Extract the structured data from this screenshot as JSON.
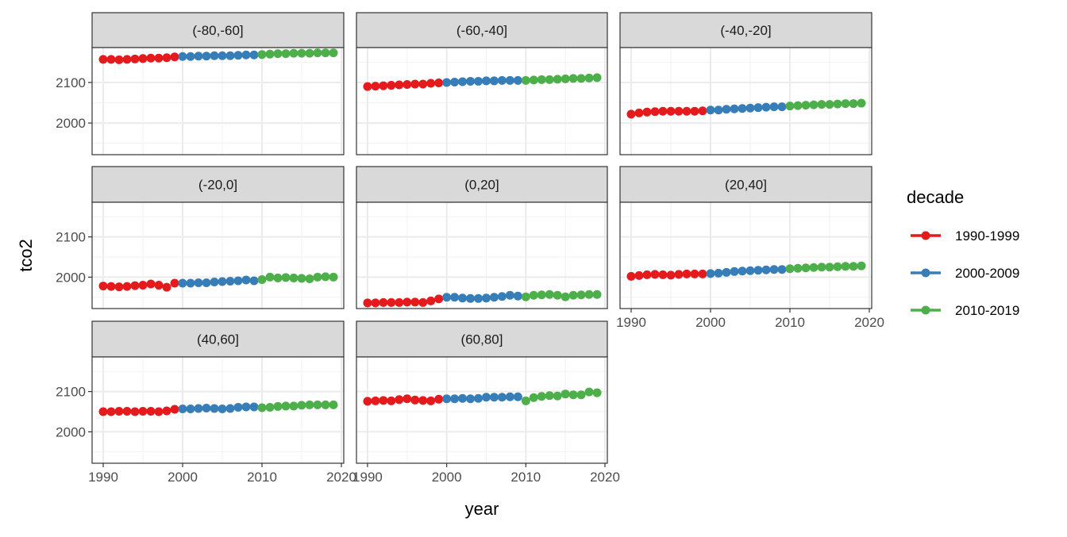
{
  "chart_data": {
    "type": "scatter",
    "facet_by": "latitude band",
    "xlabel": "year",
    "ylabel": "tco2",
    "xlim": [
      1988.6,
      2020.3
    ],
    "ylim": [
      1922,
      2186
    ],
    "x_ticks": [
      "1990",
      "2000",
      "2010",
      "2020"
    ],
    "y_ticks": [
      "2000",
      "2100"
    ],
    "grid": true,
    "legend": {
      "title": "decade",
      "position": "right",
      "entries": [
        {
          "label": "1990-1999",
          "color": "#E41A1C"
        },
        {
          "label": "2000-2009",
          "color": "#377EB8"
        },
        {
          "label": "2010-2019",
          "color": "#4DAF4A"
        }
      ]
    },
    "x": [
      1990,
      1991,
      1992,
      1993,
      1994,
      1995,
      1996,
      1997,
      1998,
      1999,
      2000,
      2001,
      2002,
      2003,
      2004,
      2005,
      2006,
      2007,
      2008,
      2009,
      2010,
      2011,
      2012,
      2013,
      2014,
      2015,
      2016,
      2017,
      2018,
      2019
    ],
    "panels": [
      {
        "label": "(-80,-60]",
        "values": [
          2157,
          2157,
          2156,
          2157,
          2158,
          2159,
          2160,
          2160,
          2161,
          2163,
          2164,
          2164,
          2165,
          2165,
          2166,
          2166,
          2166,
          2167,
          2168,
          2168,
          2169,
          2170,
          2171,
          2171,
          2172,
          2172,
          2172,
          2173,
          2173,
          2173
        ]
      },
      {
        "label": "(-60,-40]",
        "values": [
          2090,
          2091,
          2092,
          2093,
          2094,
          2095,
          2096,
          2096,
          2098,
          2099,
          2100,
          2101,
          2102,
          2103,
          2103,
          2104,
          2104,
          2105,
          2105,
          2105,
          2105,
          2106,
          2107,
          2107,
          2108,
          2109,
          2110,
          2110,
          2111,
          2112
        ]
      },
      {
        "label": "(-40,-20]",
        "values": [
          2022,
          2025,
          2027,
          2028,
          2029,
          2029,
          2029,
          2029,
          2029,
          2030,
          2032,
          2032,
          2034,
          2035,
          2036,
          2037,
          2038,
          2039,
          2040,
          2040,
          2042,
          2043,
          2044,
          2045,
          2046,
          2046,
          2047,
          2048,
          2048,
          2049
        ]
      },
      {
        "label": "(-20,0]",
        "values": [
          1978,
          1977,
          1976,
          1977,
          1979,
          1980,
          1983,
          1980,
          1975,
          1985,
          1985,
          1985,
          1986,
          1986,
          1988,
          1989,
          1990,
          1991,
          1993,
          1991,
          1994,
          2000,
          1998,
          1999,
          1998,
          1997,
          1996,
          2000,
          2001,
          2000
        ]
      },
      {
        "label": "(0,20]",
        "values": [
          1936,
          1936,
          1937,
          1937,
          1937,
          1938,
          1938,
          1937,
          1941,
          1946,
          1950,
          1950,
          1948,
          1947,
          1947,
          1948,
          1950,
          1952,
          1955,
          1953,
          1951,
          1955,
          1956,
          1957,
          1955,
          1951,
          1955,
          1956,
          1957,
          1957
        ]
      },
      {
        "label": "(20,40]",
        "values": [
          2002,
          2004,
          2006,
          2007,
          2006,
          2005,
          2007,
          2008,
          2008,
          2008,
          2009,
          2010,
          2012,
          2014,
          2015,
          2016,
          2017,
          2018,
          2019,
          2019,
          2021,
          2022,
          2023,
          2024,
          2025,
          2025,
          2026,
          2027,
          2027,
          2028
        ]
      },
      {
        "label": "(40,60]",
        "values": [
          2050,
          2050,
          2051,
          2051,
          2050,
          2051,
          2051,
          2050,
          2052,
          2056,
          2057,
          2057,
          2058,
          2059,
          2058,
          2057,
          2058,
          2061,
          2062,
          2062,
          2060,
          2061,
          2063,
          2064,
          2064,
          2066,
          2067,
          2067,
          2067,
          2067
        ]
      },
      {
        "label": "(60,80]",
        "values": [
          2076,
          2077,
          2078,
          2077,
          2080,
          2082,
          2079,
          2078,
          2077,
          2081,
          2082,
          2082,
          2083,
          2082,
          2083,
          2086,
          2086,
          2086,
          2087,
          2087,
          2077,
          2085,
          2088,
          2090,
          2089,
          2094,
          2092,
          2092,
          2099,
          2097
        ]
      }
    ]
  }
}
